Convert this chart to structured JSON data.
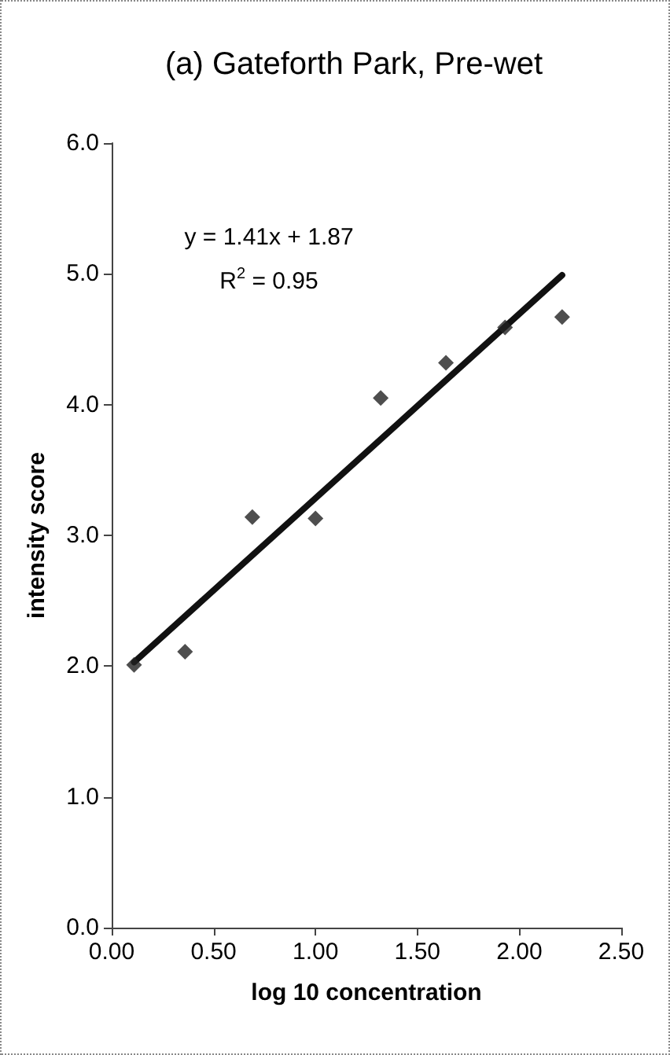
{
  "chart_data": {
    "type": "scatter",
    "title": "(a) Gateforth Park, Pre-wet",
    "xlabel": "log 10 concentration",
    "ylabel": "intensity score",
    "annotations": [
      "y = 1.41x + 1.87",
      "R$^{2}$ = 0.95"
    ],
    "xlim": [
      0,
      2.5
    ],
    "xticks": [
      {
        "value": 0,
        "label": "0.00"
      },
      {
        "value": 0.5,
        "label": "0.50"
      },
      {
        "value": 1,
        "label": "1.00"
      },
      {
        "value": 1.5,
        "label": "1.50"
      },
      {
        "value": 2,
        "label": "2.00"
      },
      {
        "value": 2.5,
        "label": "2.50"
      }
    ],
    "ylim": [
      0,
      6
    ],
    "yticks": [
      {
        "value": 0,
        "label": "0.0"
      },
      {
        "value": 1,
        "label": "1.0"
      },
      {
        "value": 2,
        "label": "2.0"
      },
      {
        "value": 3,
        "label": "3.0"
      },
      {
        "value": 4,
        "label": "4.0"
      },
      {
        "value": 5,
        "label": "5.0"
      },
      {
        "value": 6,
        "label": "6.0"
      }
    ],
    "grid": false,
    "series": [
      {
        "color": "#222222",
        "marker": "diamond",
        "x": [
          0.11,
          0.36,
          0.69,
          1.0,
          1.32,
          1.64,
          1.93,
          2.21
        ],
        "values": [
          2.01,
          2.11,
          3.14,
          3.13,
          4.05,
          4.32,
          4.59,
          4.67
        ]
      },
      {
        "type": "line",
        "color": "#111111",
        "marker": "none",
        "line_style": "solid",
        "x": [
          0.11,
          2.21
        ],
        "values": [
          2.03,
          4.99
        ]
      }
    ]
  }
}
